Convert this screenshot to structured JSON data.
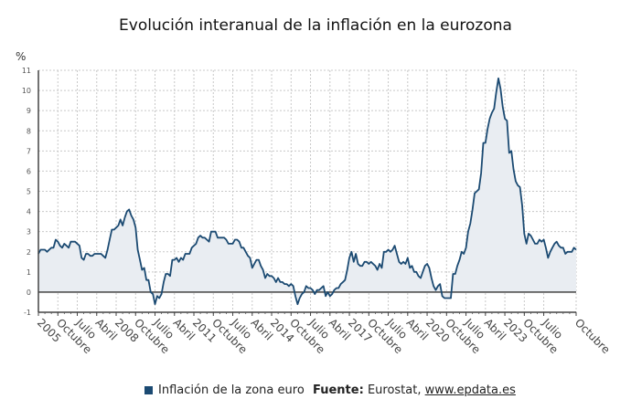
{
  "chart_data": {
    "type": "area",
    "title": "Evolución interanual de la inflación en la eurozona",
    "ylabel": "%",
    "ylim": [
      -1,
      11
    ],
    "yticks": [
      -1,
      0,
      1,
      2,
      3,
      4,
      5,
      6,
      7,
      8,
      9,
      10,
      11
    ],
    "grid": true,
    "legend_placement": "bottom",
    "x_start": "2005-01",
    "x_end": "2025-10",
    "x_frequency": "monthly",
    "xtick_labels": [
      "2005",
      "Octubre",
      "Julio",
      "Abril",
      "2008",
      "Octubre",
      "Julio",
      "Abril",
      "2011",
      "Octubre",
      "Julio",
      "Abril",
      "2014",
      "Octubre",
      "Julio",
      "Abril",
      "2017",
      "Octubre",
      "Julio",
      "Abril",
      "2020",
      "Octubre",
      "Julio",
      "Abril",
      "2023",
      "Octubre",
      "Julio",
      "Octubre"
    ],
    "series": [
      {
        "name": "Inflación de la zona euro",
        "color": "#1b4a72",
        "fill": "#e9edf2",
        "values": [
          1.9,
          2.1,
          2.1,
          2.1,
          2.0,
          2.1,
          2.2,
          2.2,
          2.6,
          2.5,
          2.3,
          2.2,
          2.4,
          2.3,
          2.2,
          2.5,
          2.5,
          2.5,
          2.4,
          2.3,
          1.7,
          1.6,
          1.9,
          1.9,
          1.8,
          1.8,
          1.9,
          1.9,
          1.9,
          1.9,
          1.8,
          1.7,
          2.1,
          2.6,
          3.1,
          3.1,
          3.2,
          3.3,
          3.6,
          3.3,
          3.7,
          4.0,
          4.1,
          3.8,
          3.6,
          3.2,
          2.1,
          1.6,
          1.1,
          1.2,
          0.6,
          0.6,
          0.0,
          -0.1,
          -0.6,
          -0.2,
          -0.3,
          -0.1,
          0.5,
          0.9,
          0.9,
          0.8,
          1.6,
          1.6,
          1.7,
          1.5,
          1.7,
          1.6,
          1.9,
          1.9,
          1.9,
          2.2,
          2.3,
          2.4,
          2.7,
          2.8,
          2.7,
          2.7,
          2.6,
          2.5,
          3.0,
          3.0,
          3.0,
          2.7,
          2.7,
          2.7,
          2.7,
          2.6,
          2.4,
          2.4,
          2.4,
          2.6,
          2.6,
          2.5,
          2.2,
          2.2,
          2.0,
          1.8,
          1.7,
          1.2,
          1.4,
          1.6,
          1.6,
          1.3,
          1.1,
          0.7,
          0.9,
          0.8,
          0.8,
          0.7,
          0.5,
          0.7,
          0.5,
          0.5,
          0.4,
          0.4,
          0.3,
          0.4,
          0.3,
          -0.2,
          -0.6,
          -0.3,
          -0.1,
          0.0,
          0.3,
          0.2,
          0.2,
          0.1,
          -0.1,
          0.1,
          0.1,
          0.2,
          0.3,
          -0.2,
          0.0,
          -0.2,
          -0.1,
          0.1,
          0.2,
          0.2,
          0.4,
          0.5,
          0.6,
          1.1,
          1.7,
          2.0,
          1.5,
          1.9,
          1.4,
          1.3,
          1.3,
          1.5,
          1.5,
          1.4,
          1.5,
          1.4,
          1.3,
          1.1,
          1.4,
          1.2,
          2.0,
          2.0,
          2.1,
          2.0,
          2.1,
          2.3,
          1.9,
          1.5,
          1.4,
          1.5,
          1.4,
          1.7,
          1.2,
          1.3,
          1.0,
          1.0,
          0.8,
          0.7,
          1.0,
          1.3,
          1.4,
          1.2,
          0.7,
          0.3,
          0.1,
          0.3,
          0.4,
          -0.2,
          -0.3,
          -0.3,
          -0.3,
          -0.3,
          0.9,
          0.9,
          1.3,
          1.6,
          2.0,
          1.9,
          2.2,
          3.0,
          3.4,
          4.1,
          4.9,
          5.0,
          5.1,
          5.9,
          7.4,
          7.4,
          8.1,
          8.6,
          8.9,
          9.1,
          9.9,
          10.6,
          10.1,
          9.2,
          8.6,
          8.5,
          6.9,
          7.0,
          6.1,
          5.5,
          5.3,
          5.2,
          4.3,
          2.9,
          2.4,
          2.9,
          2.8,
          2.6,
          2.4,
          2.4,
          2.6,
          2.5,
          2.6,
          2.2,
          1.7,
          2.0,
          2.2,
          2.4,
          2.5,
          2.3,
          2.2,
          2.2,
          1.9,
          2.0,
          2.0,
          2.0,
          2.2,
          2.1
        ]
      }
    ]
  },
  "legend": {
    "label": "Inflación de la zona euro"
  },
  "source": {
    "prefix": "Fuente:",
    "name": "Eurostat,",
    "link": "www.epdata.es"
  }
}
